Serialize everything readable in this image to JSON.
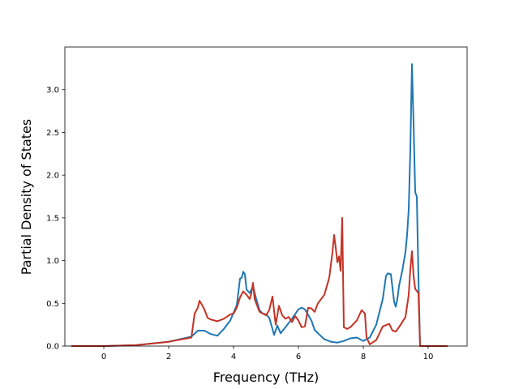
{
  "chart_data": {
    "type": "line",
    "title": "",
    "xlabel": "Frequency (THz)",
    "ylabel": "Partial Density of States",
    "xlim": [
      -1.2,
      11.2
    ],
    "ylim": [
      0,
      3.5
    ],
    "xticks": [
      0,
      2,
      4,
      6,
      8,
      10
    ],
    "xtick_labels": [
      "0",
      "2",
      "4",
      "6",
      "8",
      "10"
    ],
    "yticks": [
      0.0,
      0.5,
      1.0,
      1.5,
      2.0,
      2.5,
      3.0
    ],
    "ytick_labels": [
      "0.0",
      "0.5",
      "1.0",
      "1.5",
      "2.0",
      "2.5",
      "3.0"
    ],
    "grid": false,
    "legend": "none",
    "series": [
      {
        "color": "#1f77b4",
        "points": [
          [
            -1.0,
            0.0
          ],
          [
            0.0,
            0.0
          ],
          [
            1.0,
            0.01
          ],
          [
            2.0,
            0.05
          ],
          [
            2.7,
            0.11
          ],
          [
            2.9,
            0.18
          ],
          [
            3.1,
            0.18
          ],
          [
            3.3,
            0.14
          ],
          [
            3.5,
            0.12
          ],
          [
            3.7,
            0.2
          ],
          [
            3.9,
            0.3
          ],
          [
            4.1,
            0.48
          ],
          [
            4.2,
            0.79
          ],
          [
            4.25,
            0.8
          ],
          [
            4.3,
            0.87
          ],
          [
            4.35,
            0.84
          ],
          [
            4.4,
            0.66
          ],
          [
            4.5,
            0.62
          ],
          [
            4.6,
            0.7
          ],
          [
            4.7,
            0.55
          ],
          [
            4.8,
            0.42
          ],
          [
            4.9,
            0.38
          ],
          [
            5.0,
            0.37
          ],
          [
            5.1,
            0.33
          ],
          [
            5.2,
            0.2
          ],
          [
            5.25,
            0.13
          ],
          [
            5.35,
            0.24
          ],
          [
            5.45,
            0.15
          ],
          [
            5.6,
            0.22
          ],
          [
            5.8,
            0.32
          ],
          [
            6.0,
            0.43
          ],
          [
            6.1,
            0.45
          ],
          [
            6.2,
            0.43
          ],
          [
            6.4,
            0.3
          ],
          [
            6.5,
            0.19
          ],
          [
            6.6,
            0.15
          ],
          [
            6.8,
            0.08
          ],
          [
            7.0,
            0.05
          ],
          [
            7.2,
            0.04
          ],
          [
            7.4,
            0.06
          ],
          [
            7.6,
            0.09
          ],
          [
            7.8,
            0.1
          ],
          [
            8.0,
            0.06
          ],
          [
            8.2,
            0.1
          ],
          [
            8.4,
            0.25
          ],
          [
            8.6,
            0.55
          ],
          [
            8.7,
            0.82
          ],
          [
            8.75,
            0.85
          ],
          [
            8.85,
            0.84
          ],
          [
            8.95,
            0.52
          ],
          [
            9.0,
            0.46
          ],
          [
            9.05,
            0.55
          ],
          [
            9.1,
            0.7
          ],
          [
            9.2,
            0.88
          ],
          [
            9.3,
            1.1
          ],
          [
            9.35,
            1.3
          ],
          [
            9.4,
            1.6
          ],
          [
            9.45,
            2.3
          ],
          [
            9.5,
            3.3
          ],
          [
            9.55,
            2.6
          ],
          [
            9.6,
            1.8
          ],
          [
            9.65,
            1.75
          ],
          [
            9.7,
            0.8
          ],
          [
            9.75,
            0.0
          ],
          [
            10.6,
            0.0
          ]
        ]
      },
      {
        "color": "#c43326",
        "points": [
          [
            -1.0,
            0.0
          ],
          [
            0.0,
            0.0
          ],
          [
            1.0,
            0.01
          ],
          [
            2.0,
            0.05
          ],
          [
            2.7,
            0.1
          ],
          [
            2.8,
            0.38
          ],
          [
            2.9,
            0.45
          ],
          [
            2.95,
            0.53
          ],
          [
            3.0,
            0.5
          ],
          [
            3.1,
            0.43
          ],
          [
            3.2,
            0.33
          ],
          [
            3.3,
            0.31
          ],
          [
            3.5,
            0.29
          ],
          [
            3.7,
            0.32
          ],
          [
            3.9,
            0.37
          ],
          [
            4.0,
            0.38
          ],
          [
            4.1,
            0.45
          ],
          [
            4.2,
            0.57
          ],
          [
            4.3,
            0.64
          ],
          [
            4.4,
            0.6
          ],
          [
            4.5,
            0.55
          ],
          [
            4.55,
            0.62
          ],
          [
            4.6,
            0.74
          ],
          [
            4.65,
            0.55
          ],
          [
            4.7,
            0.5
          ],
          [
            4.8,
            0.4
          ],
          [
            5.0,
            0.36
          ],
          [
            5.1,
            0.42
          ],
          [
            5.2,
            0.58
          ],
          [
            5.3,
            0.25
          ],
          [
            5.4,
            0.47
          ],
          [
            5.5,
            0.36
          ],
          [
            5.6,
            0.32
          ],
          [
            5.7,
            0.34
          ],
          [
            5.8,
            0.28
          ],
          [
            5.9,
            0.35
          ],
          [
            6.0,
            0.3
          ],
          [
            6.1,
            0.22
          ],
          [
            6.2,
            0.23
          ],
          [
            6.3,
            0.45
          ],
          [
            6.4,
            0.44
          ],
          [
            6.5,
            0.4
          ],
          [
            6.6,
            0.5
          ],
          [
            6.8,
            0.6
          ],
          [
            6.95,
            0.8
          ],
          [
            7.05,
            1.1
          ],
          [
            7.1,
            1.3
          ],
          [
            7.15,
            1.15
          ],
          [
            7.2,
            0.98
          ],
          [
            7.25,
            1.05
          ],
          [
            7.3,
            0.88
          ],
          [
            7.35,
            1.5
          ],
          [
            7.4,
            0.22
          ],
          [
            7.5,
            0.2
          ],
          [
            7.6,
            0.22
          ],
          [
            7.8,
            0.3
          ],
          [
            7.95,
            0.42
          ],
          [
            8.05,
            0.38
          ],
          [
            8.1,
            0.1
          ],
          [
            8.2,
            0.02
          ],
          [
            8.4,
            0.07
          ],
          [
            8.6,
            0.23
          ],
          [
            8.8,
            0.26
          ],
          [
            8.9,
            0.18
          ],
          [
            9.0,
            0.17
          ],
          [
            9.1,
            0.22
          ],
          [
            9.3,
            0.34
          ],
          [
            9.4,
            0.6
          ],
          [
            9.45,
            0.9
          ],
          [
            9.5,
            1.11
          ],
          [
            9.55,
            0.82
          ],
          [
            9.6,
            0.67
          ],
          [
            9.7,
            0.62
          ],
          [
            9.75,
            0.0
          ],
          [
            10.6,
            0.0
          ]
        ]
      }
    ]
  }
}
